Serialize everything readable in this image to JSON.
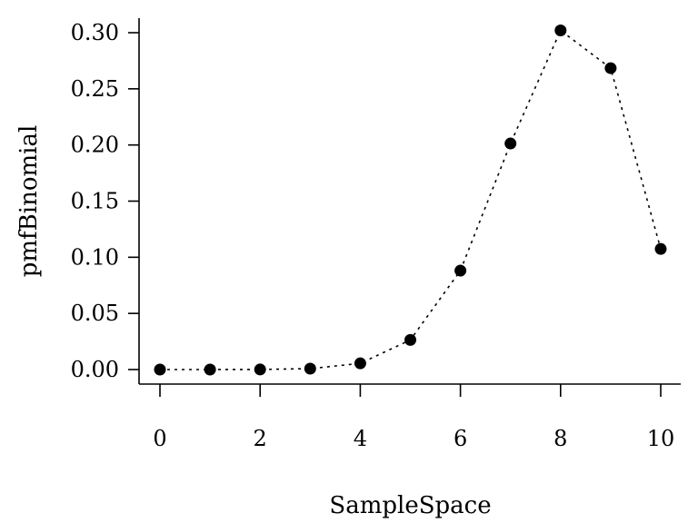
{
  "chart_data": {
    "type": "scatter",
    "xlabel": "SampleSpace",
    "ylabel": "pmfBinomial",
    "xlim": [
      0,
      10
    ],
    "ylim": [
      0,
      0.3
    ],
    "x_ticks": [
      "0",
      "2",
      "4",
      "6",
      "8",
      "10"
    ],
    "y_ticks": [
      "0.00",
      "0.05",
      "0.10",
      "0.15",
      "0.20",
      "0.25",
      "0.30"
    ],
    "grid": false,
    "series": [
      {
        "x": [
          0,
          1,
          2,
          3,
          4,
          5,
          6,
          7,
          8,
          9,
          10
        ],
        "y": [
          1e-07,
          4e-06,
          7.37e-05,
          0.000786,
          0.00551,
          0.0264,
          0.0881,
          0.2013,
          0.302,
          0.2684,
          0.1074
        ],
        "line_style": "dotted",
        "marker": "filled-circle",
        "color": "#000000"
      }
    ]
  }
}
